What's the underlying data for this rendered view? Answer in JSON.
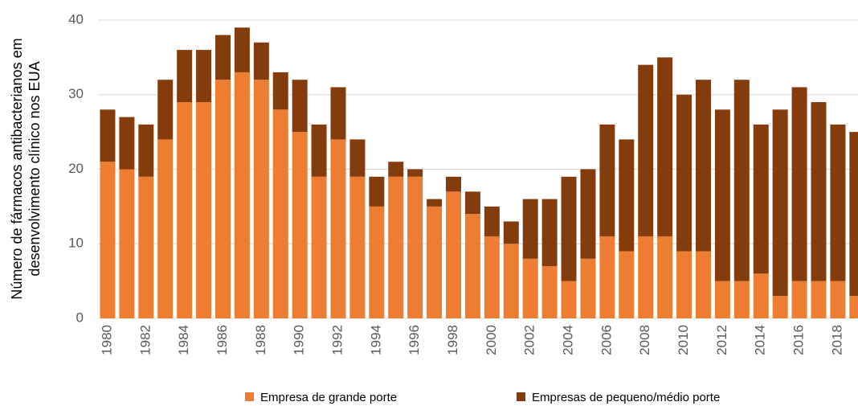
{
  "chart_data": {
    "type": "stacked_bar",
    "ylabel": [
      "Número de fármacos antibacterianos em",
      "desenvolvimento clínico nos EUA"
    ],
    "categories": [
      "1980",
      null,
      "1982",
      null,
      "1984",
      null,
      "1986",
      null,
      "1988",
      null,
      "1990",
      null,
      "1992",
      null,
      "1994",
      null,
      "1996",
      null,
      "1998",
      null,
      "2000",
      null,
      "2002",
      null,
      "2004",
      null,
      "2006",
      null,
      "2008",
      null,
      "2010",
      null,
      "2012",
      null,
      "2014",
      null,
      "2016",
      null,
      "2018",
      null
    ],
    "series": [
      {
        "name": "Empresa de grande porte",
        "color": "#ed7d31",
        "values": [
          21,
          20,
          19,
          24,
          29,
          29,
          32,
          33,
          32,
          28,
          25,
          19,
          24,
          19,
          15,
          19,
          19,
          15,
          17,
          14,
          11,
          10,
          8,
          7,
          5,
          8,
          11,
          9,
          11,
          11,
          9,
          9,
          5,
          5,
          6,
          3,
          5,
          5,
          5,
          3
        ]
      },
      {
        "name": "Empresas de pequeno/médio porte",
        "color": "#843c0c",
        "values": [
          7,
          7,
          7,
          8,
          7,
          7,
          6,
          6,
          5,
          5,
          7,
          7,
          7,
          5,
          4,
          2,
          1,
          1,
          2,
          3,
          4,
          3,
          8,
          9,
          14,
          12,
          15,
          15,
          23,
          24,
          21,
          23,
          23,
          27,
          20,
          25,
          26,
          24,
          21,
          22
        ]
      }
    ],
    "ylim": [
      0,
      40
    ],
    "yticks": [
      0,
      10,
      20,
      30,
      40
    ],
    "grid": true,
    "legend": "bottom"
  }
}
